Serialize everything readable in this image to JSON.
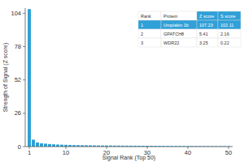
{
  "chart_data": {
    "type": "bar",
    "x_label": "Signal Rank (Top 50)",
    "y_label": "Strength of Signal (Z score)",
    "x": [
      1,
      2,
      3,
      4,
      5,
      6,
      7,
      8,
      9,
      10,
      11,
      12,
      13,
      14,
      15,
      16,
      17,
      18,
      19,
      20,
      21,
      22,
      23,
      24,
      25,
      26,
      27,
      28,
      29,
      30,
      31,
      32,
      33,
      34,
      35,
      36,
      37,
      38,
      39,
      40,
      41,
      42,
      43,
      44,
      45,
      46,
      47,
      48,
      49,
      50
    ],
    "values": [
      107.23,
      5.41,
      3.25,
      2.6,
      2.3,
      2.0,
      1.8,
      1.6,
      1.5,
      1.4,
      1.3,
      1.2,
      1.15,
      1.1,
      1.05,
      1.0,
      0.95,
      0.9,
      0.88,
      0.85,
      0.82,
      0.8,
      0.78,
      0.75,
      0.72,
      0.7,
      0.68,
      0.66,
      0.64,
      0.62,
      0.6,
      0.58,
      0.56,
      0.55,
      0.54,
      0.52,
      0.5,
      0.49,
      0.48,
      0.46,
      0.45,
      0.44,
      0.43,
      0.42,
      0.41,
      0.4,
      0.39,
      0.38,
      0.37,
      0.36
    ],
    "color": "#2a9fd6",
    "xlim": [
      0,
      51
    ],
    "xticks": [
      1,
      10,
      20,
      30,
      40,
      50
    ],
    "ylim": [
      0,
      108
    ],
    "yticks": [
      0,
      26,
      52,
      78,
      104
    ],
    "grid": false
  },
  "table": {
    "columns": [
      "Rank",
      "Protein",
      "Z score",
      "S score"
    ],
    "rows": [
      [
        1,
        "Uroplakin 1b",
        107.23,
        102.11
      ],
      [
        2,
        "GPATCH8",
        5.41,
        2.16
      ],
      [
        3,
        "WDR22",
        3.25,
        0.22
      ]
    ]
  }
}
